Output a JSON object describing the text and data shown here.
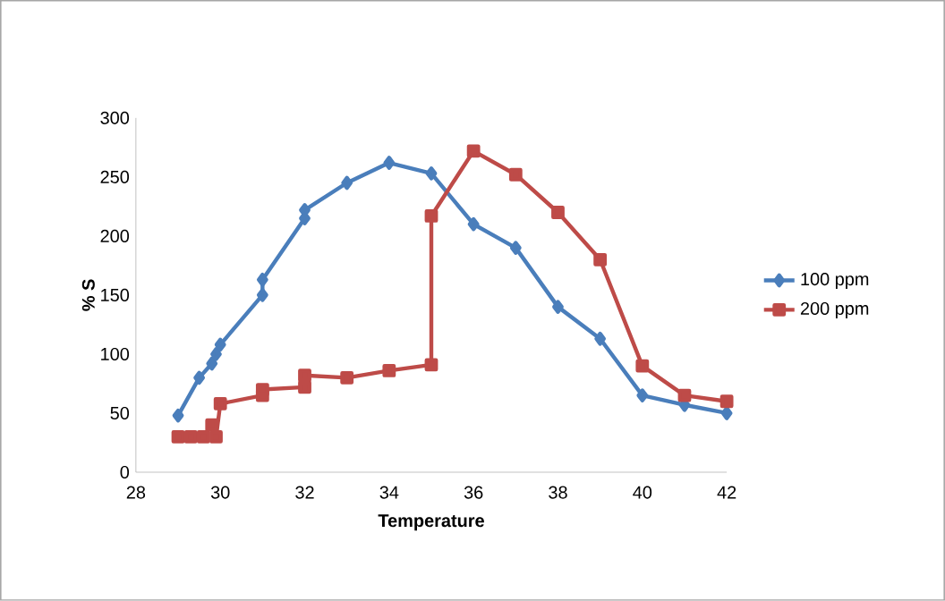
{
  "chart_data": {
    "type": "line",
    "xlabel": "Temperature",
    "ylabel": "% S",
    "xlim": [
      28,
      42
    ],
    "ylim": [
      0,
      300
    ],
    "xticks": [
      28,
      30,
      32,
      34,
      36,
      38,
      40,
      42
    ],
    "yticks": [
      0,
      50,
      100,
      150,
      200,
      250,
      300
    ],
    "grid": false,
    "legend": "right",
    "line_style": "solid",
    "series": [
      {
        "name": "100 ppm",
        "color": "#4a7ebb",
        "marker": "diamond",
        "x": [
          29,
          29.5,
          29.8,
          29.9,
          30,
          31,
          31,
          32,
          32,
          33,
          34,
          35,
          36,
          37,
          38,
          39,
          40,
          41,
          42
        ],
        "values": [
          48,
          80,
          92,
          100,
          108,
          150,
          163,
          215,
          222,
          245,
          262,
          253,
          210,
          190,
          140,
          113,
          65,
          57,
          50
        ]
      },
      {
        "name": "200 ppm",
        "color": "#be4b48",
        "marker": "square",
        "x": [
          29,
          29.3,
          29.6,
          29.8,
          29.9,
          30,
          31,
          31,
          32,
          32,
          33,
          34,
          35,
          35,
          36,
          37,
          38,
          39,
          40,
          41,
          42
        ],
        "values": [
          30,
          30,
          30,
          40,
          30,
          58,
          65,
          70,
          72,
          82,
          80,
          86,
          91,
          217,
          272,
          252,
          220,
          180,
          90,
          65,
          60
        ]
      }
    ]
  }
}
